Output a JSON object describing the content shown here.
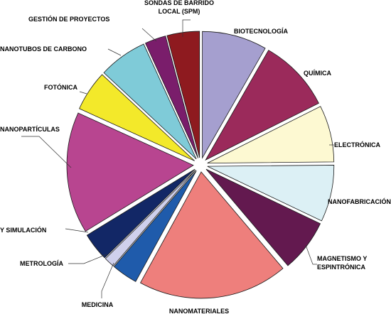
{
  "chart_data": {
    "type": "pie",
    "title": "",
    "exploded": true,
    "slices": [
      {
        "label": "BIOTECNOLOGÍA",
        "value": 8,
        "color": "#a59fcf"
      },
      {
        "label": "QUÍMICA",
        "value": 9,
        "color": "#9b2a5b"
      },
      {
        "label": "ELECTRÓNICA",
        "value": 7,
        "color": "#fdf9d2"
      },
      {
        "label": "NANOFABRICACIÓN",
        "value": 7,
        "color": "#dcf0f5"
      },
      {
        "label": "MAGNETISMO Y ESPINTRÓNICA",
        "value": 6.5,
        "color": "#63194f"
      },
      {
        "label": "NANOMATERIALES",
        "value": 18.5,
        "color": "#ee7f7c"
      },
      {
        "label": "MEDICINA",
        "value": 3.2,
        "color": "#1f5bab"
      },
      {
        "label": "METROLOGÍA",
        "value": 1.3,
        "color": "#cfd0ec"
      },
      {
        "label": "MODELIZACIÓN Y SIMULACIÓN",
        "value": 3.5,
        "color": "#122766"
      },
      {
        "label": "NANOPARTÍCULAS",
        "value": 15,
        "color": "#b84590"
      },
      {
        "label": "FOTÓNICA",
        "value": 5,
        "color": "#f3e92a"
      },
      {
        "label": "NANOTUBOS DE CARBONO",
        "value": 6,
        "color": "#7fcbd8"
      },
      {
        "label": "GESTIÓN DE PROYECTOS",
        "value": 2.6,
        "color": "#7a1d6b"
      },
      {
        "label": "SONDAS DE BARRIDO LOCAL (SPM)",
        "value": 4.0,
        "color": "#8e1a1f"
      }
    ]
  }
}
